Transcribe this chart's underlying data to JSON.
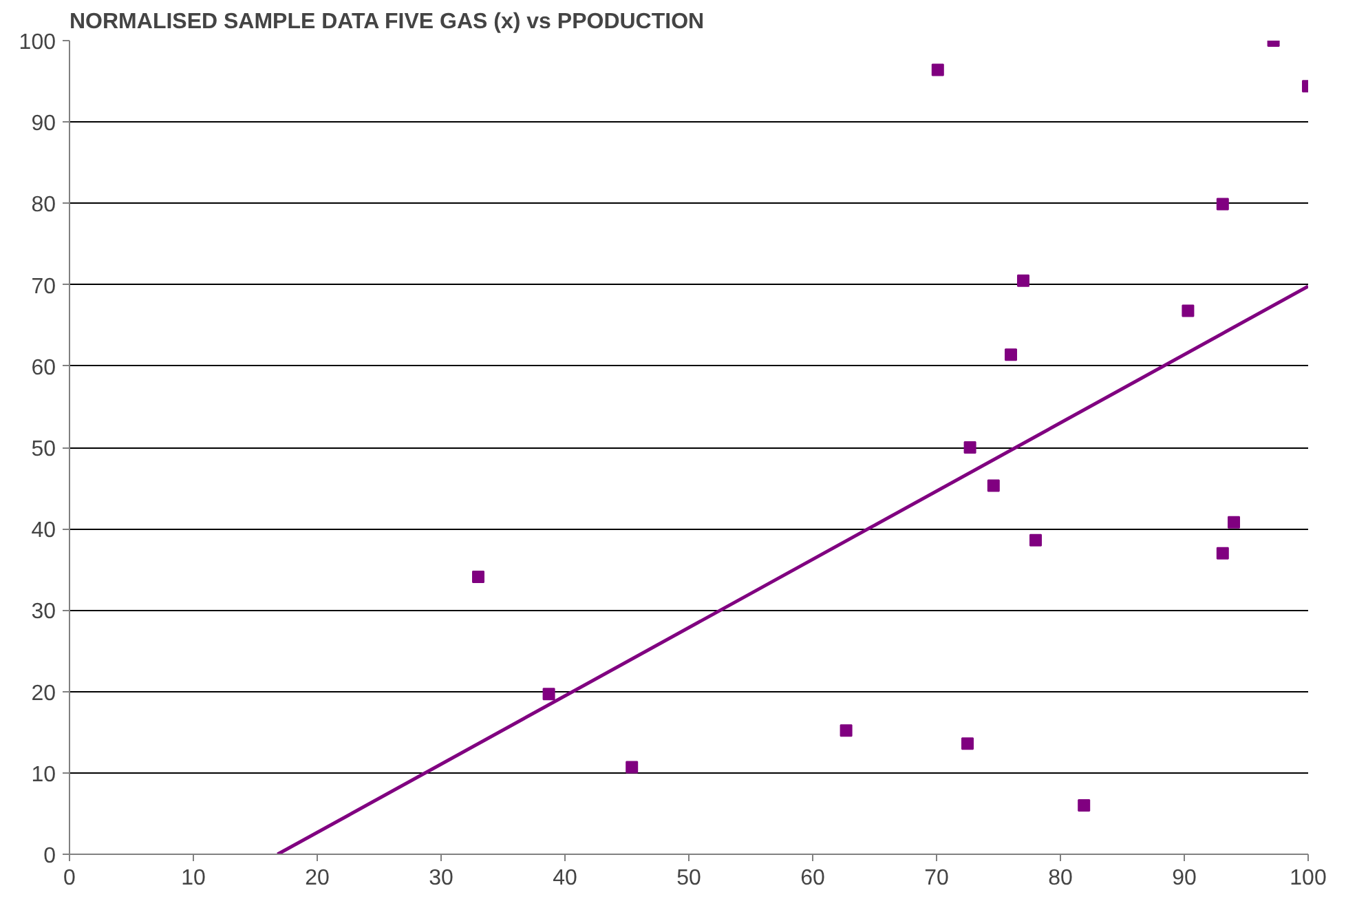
{
  "chart_data": {
    "type": "scatter",
    "title": "NORMALISED SAMPLE DATA FIVE GAS (x) vs PPODUCTION",
    "xlim": [
      0,
      100
    ],
    "ylim": [
      0,
      100
    ],
    "xticks": [
      0,
      10,
      20,
      30,
      40,
      50,
      60,
      70,
      80,
      90,
      100
    ],
    "yticks": [
      0,
      10,
      20,
      30,
      40,
      50,
      60,
      70,
      80,
      90,
      100
    ],
    "grid": "y",
    "marker": "square",
    "series": [
      {
        "color": "#800080",
        "x": [
          33.0,
          38.7,
          45.4,
          62.7,
          70.1,
          72.5,
          72.7,
          74.6,
          76.0,
          77.0,
          78.0,
          81.9,
          90.3,
          93.1,
          93.1,
          94.0,
          97.2,
          100
        ],
        "values": [
          34.1,
          19.7,
          10.7,
          15.2,
          96.4,
          13.6,
          50.0,
          45.3,
          61.4,
          70.5,
          38.6,
          6.0,
          66.8,
          79.9,
          37.0,
          40.8,
          100,
          94.4
        ]
      },
      {
        "type": "line",
        "color": "#800080",
        "marker": "none",
        "line_style": "solid",
        "x": [
          16.8,
          100
        ],
        "values": [
          0,
          69.8
        ]
      }
    ]
  }
}
